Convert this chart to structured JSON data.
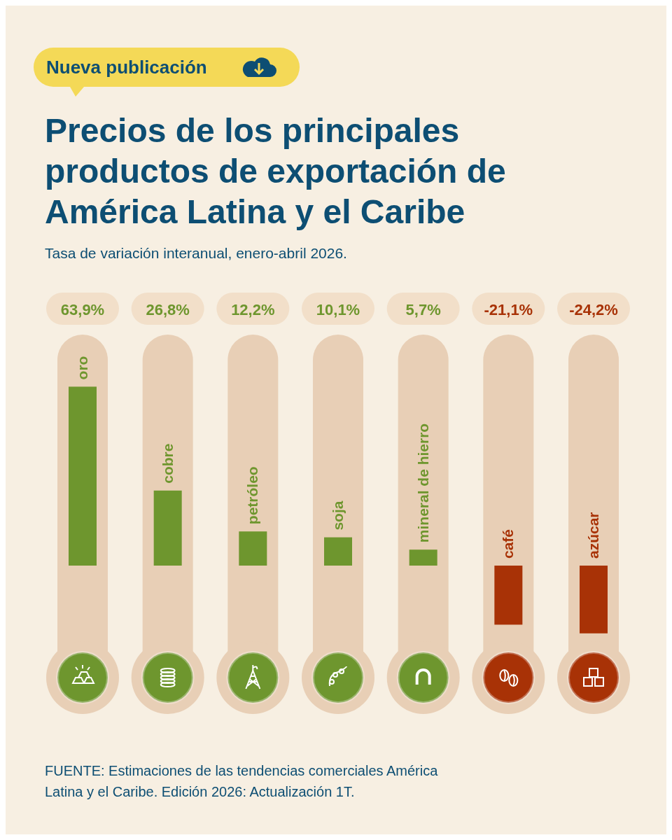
{
  "chart_data": {
    "type": "bar",
    "title": "Precios de los principales productos de exportación de América Latina y el Caribe",
    "subtitle": "Tasa de variación interanual, enero-abril 2026.",
    "annotations": [
      "Nueva publicación",
      "FUENTE: Estimaciones de las tendencias comerciales América Latina y el Caribe. Edición 2026: Actualización 1T."
    ],
    "categories": [
      "oro",
      "cobre",
      "petróleo",
      "soja",
      "mineral de hierro",
      "café",
      "azúcar"
    ],
    "values": [
      63.9,
      26.8,
      12.2,
      10.1,
      5.7,
      -21.1,
      -24.2
    ],
    "value_labels": [
      "63,9%",
      "26,8%",
      "12,2%",
      "10,1%",
      "5,7%",
      "-21,1%",
      "-24,2%"
    ],
    "colors": [
      "#6e962e",
      "#6e962e",
      "#6e962e",
      "#6e962e",
      "#6e962e",
      "#a83206",
      "#a83206"
    ]
  }
}
